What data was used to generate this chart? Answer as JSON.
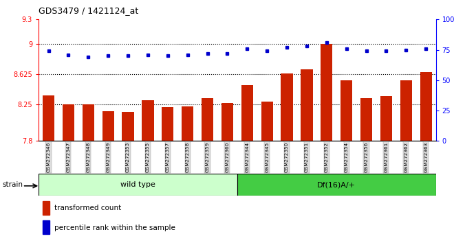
{
  "title": "GDS3479 / 1421124_at",
  "samples": [
    "GSM272346",
    "GSM272347",
    "GSM272348",
    "GSM272349",
    "GSM272353",
    "GSM272355",
    "GSM272357",
    "GSM272358",
    "GSM272359",
    "GSM272360",
    "GSM272344",
    "GSM272345",
    "GSM272350",
    "GSM272351",
    "GSM272352",
    "GSM272354",
    "GSM272356",
    "GSM272361",
    "GSM272362",
    "GSM272363"
  ],
  "bar_values": [
    8.36,
    8.25,
    8.25,
    8.17,
    8.16,
    8.3,
    8.22,
    8.23,
    8.33,
    8.27,
    8.49,
    8.29,
    8.63,
    8.68,
    9.0,
    8.55,
    8.33,
    8.35,
    8.55,
    8.65
  ],
  "dot_values": [
    74,
    71,
    69,
    70,
    70,
    71,
    70,
    71,
    72,
    72,
    76,
    74,
    77,
    78,
    81,
    76,
    74,
    74,
    75,
    76
  ],
  "wild_type_count": 10,
  "df16_count": 10,
  "wild_type_label": "wild type",
  "df16_label": "Df(16)A/+",
  "ylim_left": [
    7.8,
    9.3
  ],
  "ylim_right": [
    0,
    100
  ],
  "yticks_left": [
    7.8,
    8.25,
    8.625,
    9.0,
    9.3
  ],
  "ytick_labels_left": [
    "7.8",
    "8.25",
    "8.625",
    "9",
    "9.3"
  ],
  "yticks_right": [
    0,
    25,
    50,
    75,
    100
  ],
  "ytick_labels_right": [
    "0",
    "25",
    "50",
    "75",
    "100%"
  ],
  "hlines": [
    8.25,
    8.625,
    9.0
  ],
  "bar_color": "#cc2200",
  "dot_color": "#0000cc",
  "wild_type_bg": "#ccffcc",
  "df16_bg": "#44cc44",
  "tick_label_bg": "#dddddd",
  "bar_width": 0.6,
  "legend_bar_label": "transformed count",
  "legend_dot_label": "percentile rank within the sample",
  "strain_label": "strain"
}
